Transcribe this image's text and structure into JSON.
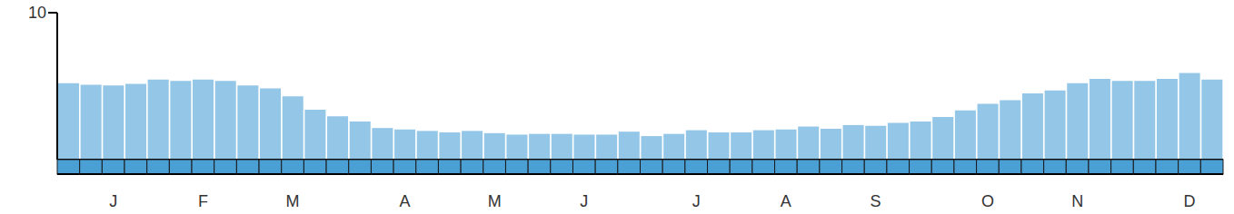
{
  "chart_data": {
    "type": "bar",
    "categories": [
      null,
      null,
      "J",
      null,
      null,
      null,
      "F",
      null,
      null,
      null,
      "M",
      null,
      null,
      null,
      null,
      "A",
      null,
      null,
      null,
      "M",
      null,
      null,
      null,
      "J",
      null,
      null,
      null,
      null,
      "J",
      null,
      null,
      null,
      "A",
      null,
      null,
      null,
      "S",
      null,
      null,
      null,
      null,
      "O",
      null,
      null,
      null,
      "N",
      null,
      null,
      null,
      null,
      "D",
      null
    ],
    "values": [
      5.2,
      5.1,
      5.05,
      5.15,
      5.45,
      5.35,
      5.45,
      5.35,
      5.05,
      4.85,
      4.3,
      3.4,
      2.95,
      2.6,
      2.15,
      2.05,
      1.95,
      1.85,
      1.95,
      1.8,
      1.7,
      1.75,
      1.75,
      1.7,
      1.7,
      1.9,
      1.6,
      1.75,
      2.0,
      1.85,
      1.85,
      2.0,
      2.05,
      2.25,
      2.1,
      2.35,
      2.3,
      2.5,
      2.6,
      2.9,
      3.35,
      3.8,
      4.05,
      4.5,
      4.7,
      5.2,
      5.5,
      5.35,
      5.35,
      5.5,
      5.9,
      5.45
    ],
    "color": "#93c6e7",
    "ylim": [
      0,
      10
    ],
    "yticks": [
      10
    ]
  }
}
